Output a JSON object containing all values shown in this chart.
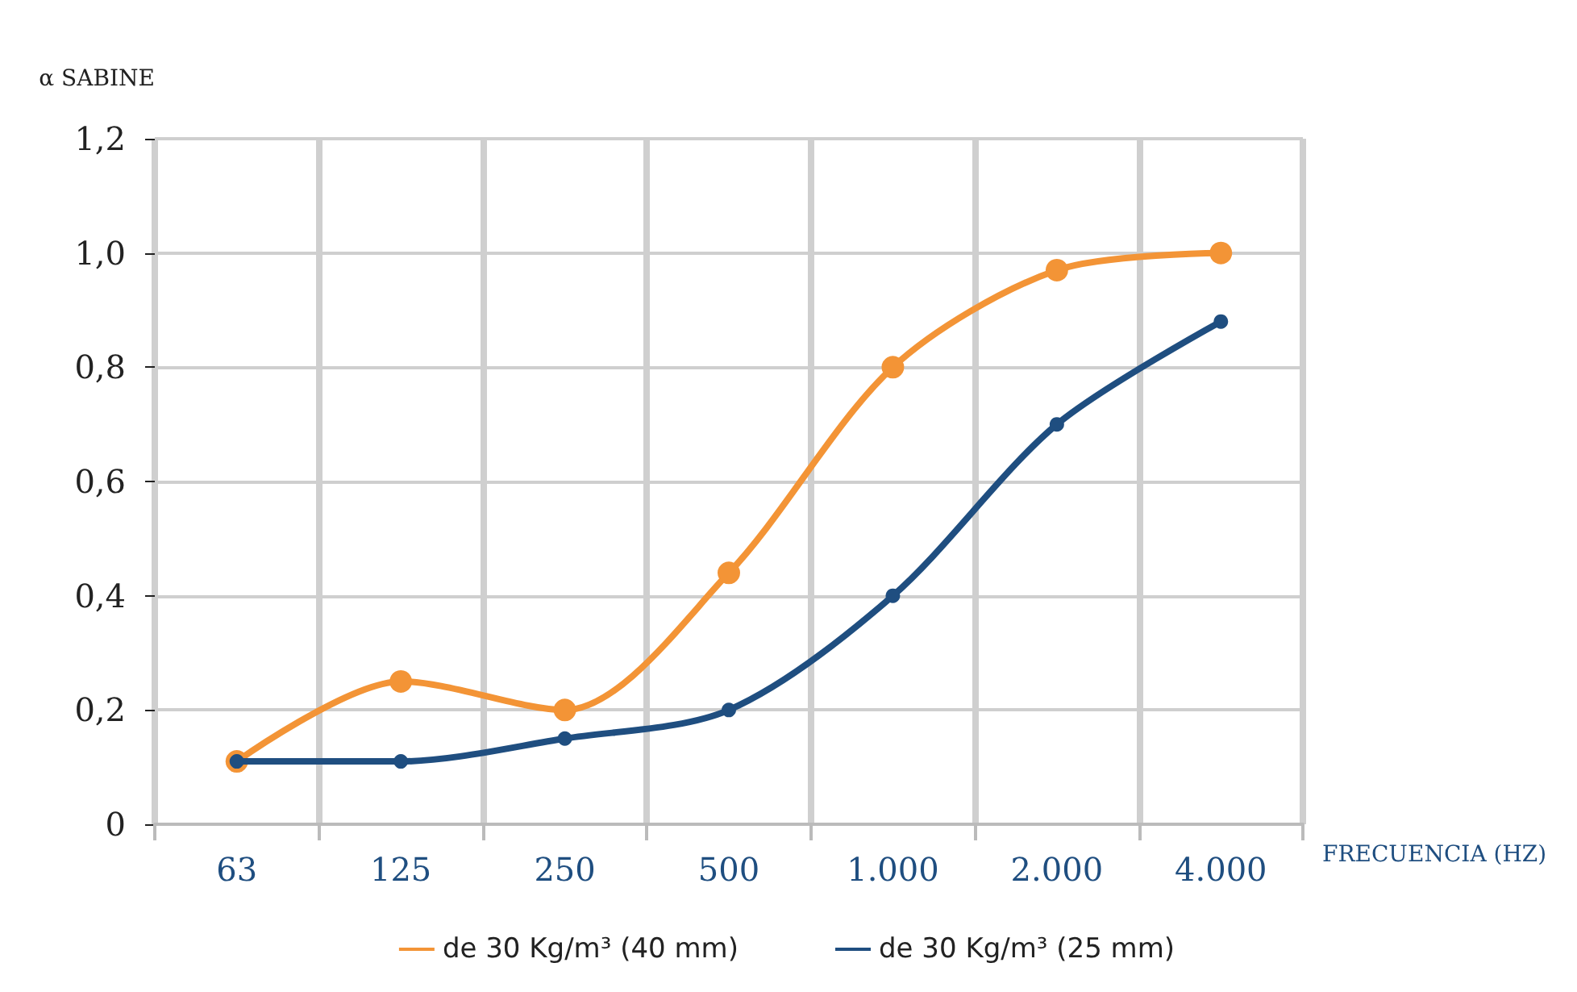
{
  "chart_data": {
    "type": "line",
    "xlabel": "FRECUENCIA (HZ)",
    "ylabel": "α SABINE",
    "categories": [
      "63",
      "125",
      "250",
      "500",
      "1.000",
      "2.000",
      "4.000"
    ],
    "series": [
      {
        "name": "de 30 Kg/m³ (40 mm)",
        "color": "#f39436",
        "values": [
          0.11,
          0.25,
          0.2,
          0.44,
          0.8,
          0.97,
          1.0
        ]
      },
      {
        "name": "de 30 Kg/m³ (25 mm)",
        "color": "#1f4e80",
        "values": [
          0.11,
          0.11,
          0.15,
          0.2,
          0.4,
          0.7,
          0.88
        ]
      }
    ],
    "ylim": [
      0,
      1.2
    ],
    "yticks": [
      0,
      {
        "value": 0.2,
        "label": "0,2"
      },
      {
        "value": 0.4,
        "label": "0,4"
      },
      {
        "value": 0.6,
        "label": "0,6"
      },
      {
        "value": 0.8,
        "label": "0,8"
      },
      {
        "value": 1.0,
        "label": "1,0"
      },
      {
        "value": 1.2,
        "label": "1,2"
      }
    ],
    "grid": true,
    "legend": "bottom",
    "marker": "circle",
    "line_style": "solid"
  }
}
